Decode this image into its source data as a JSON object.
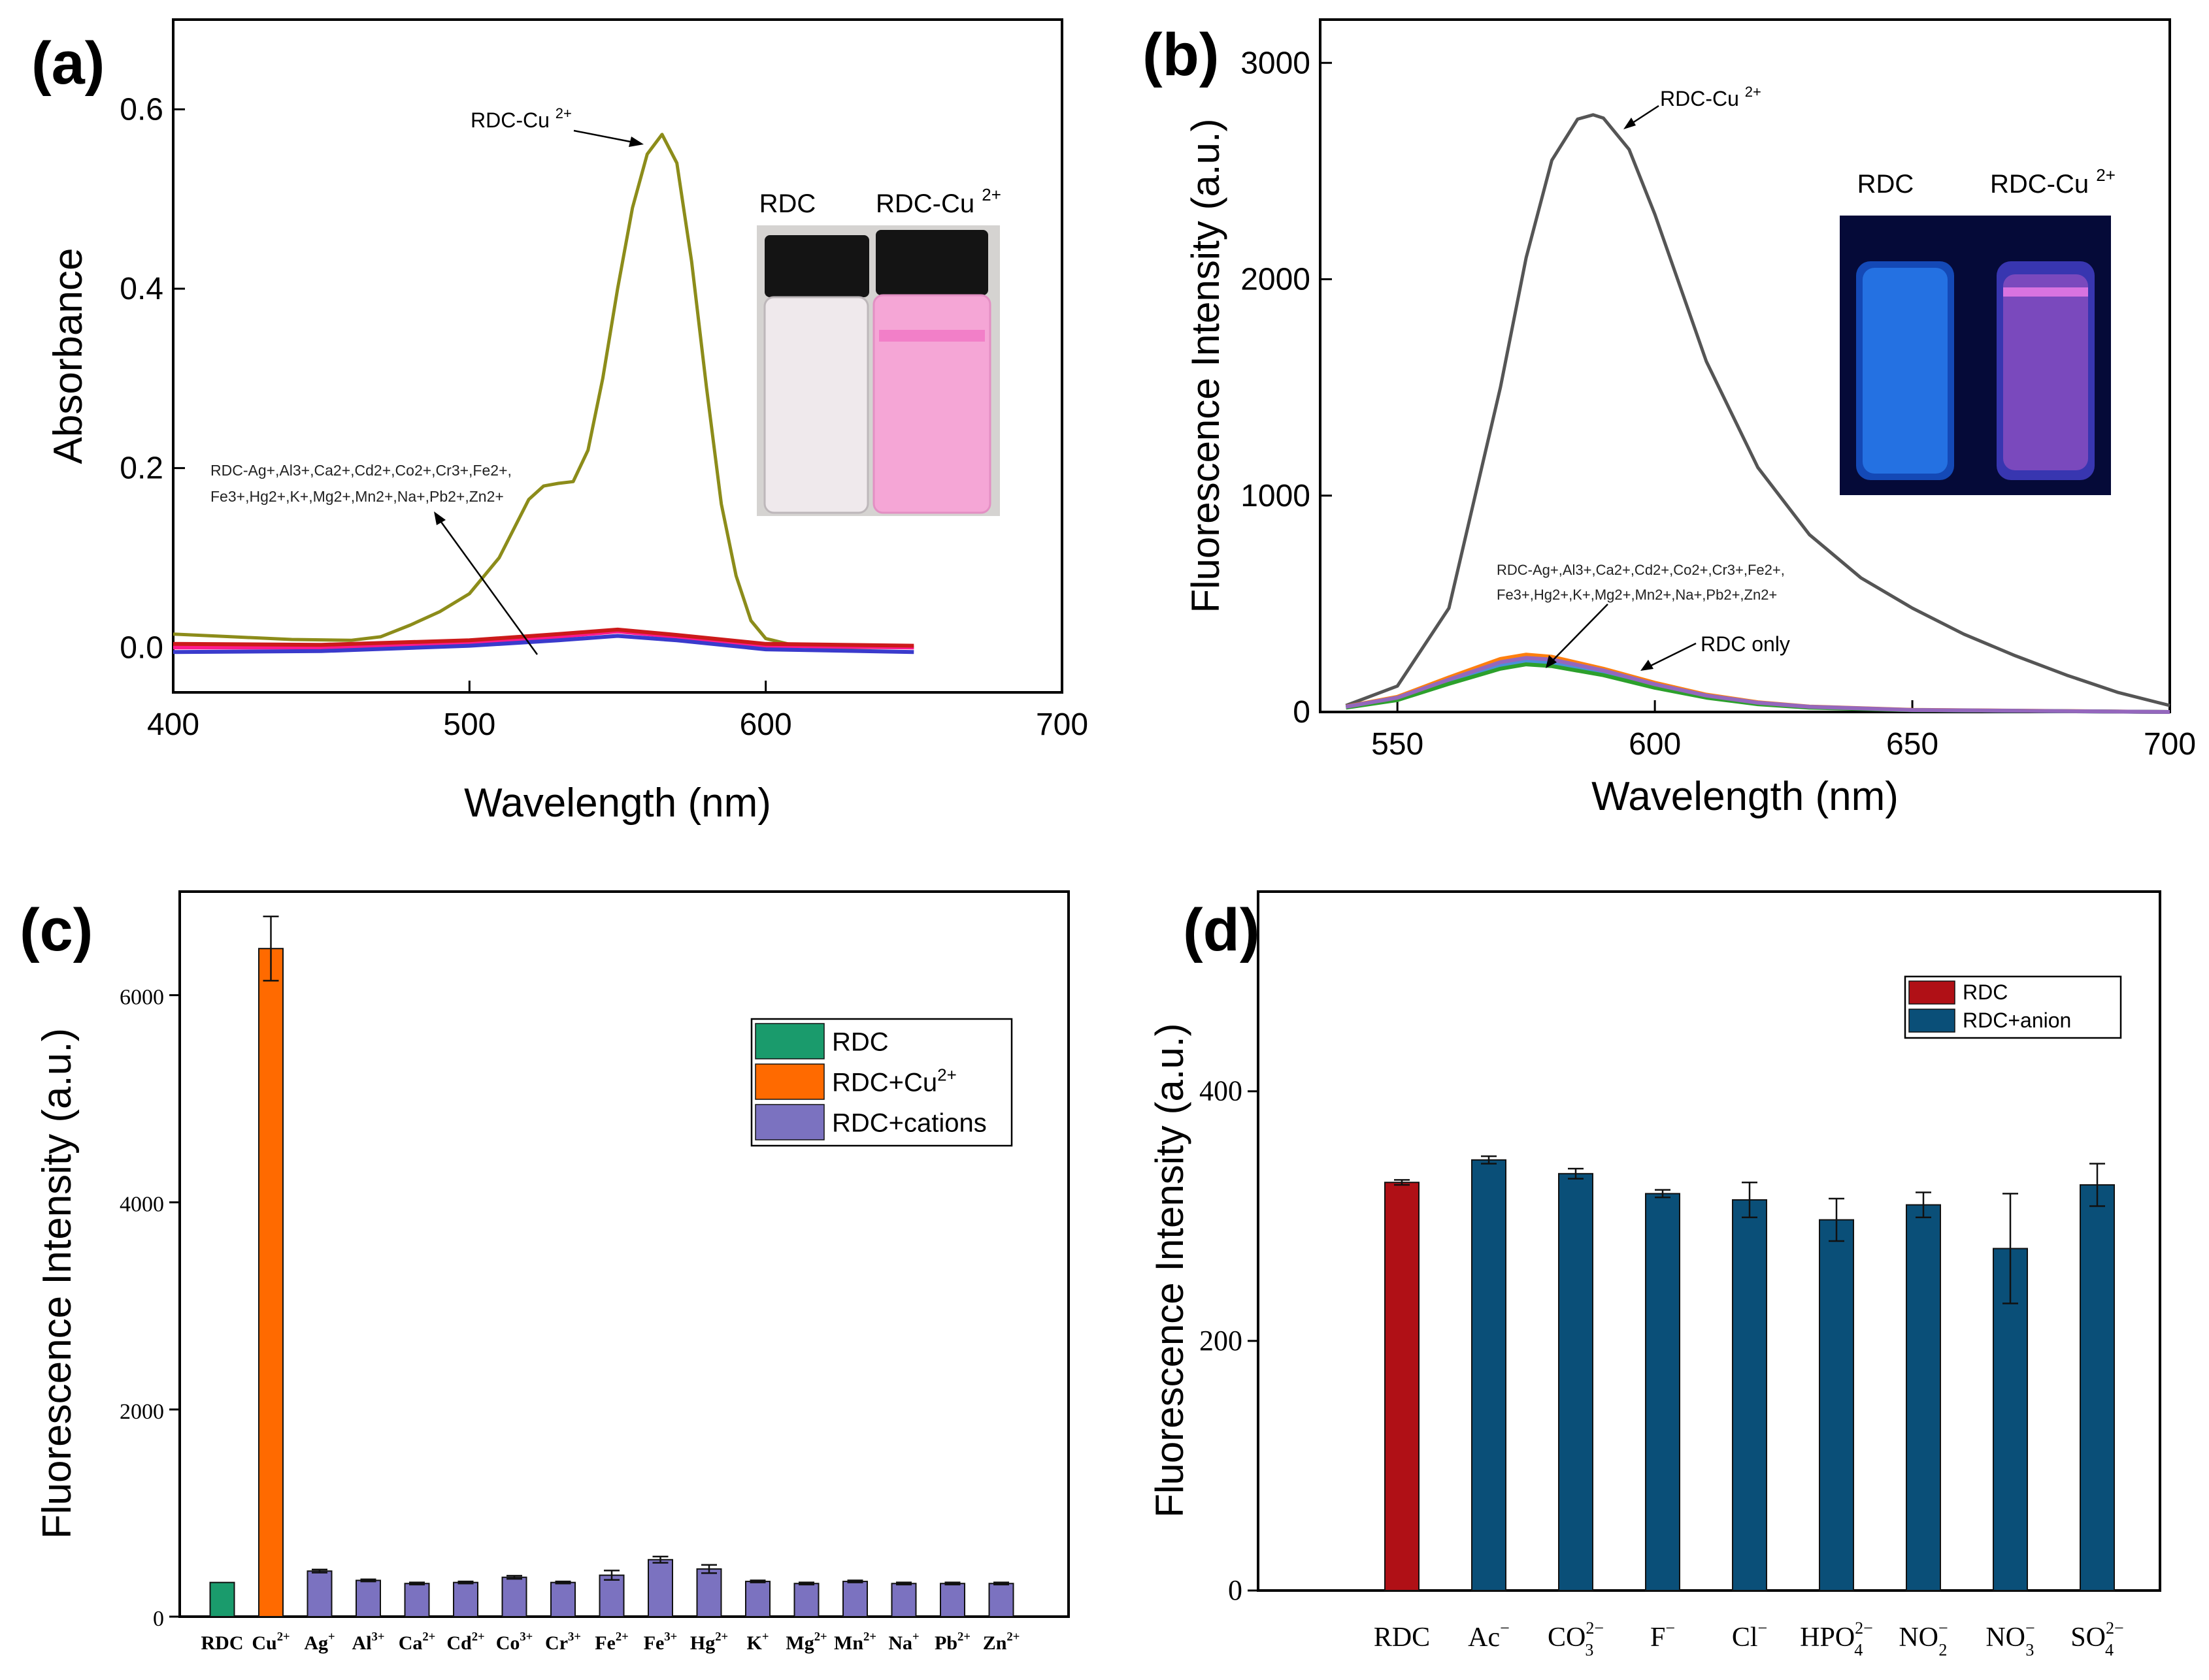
{
  "chart_data": [
    {
      "panel": "(a)",
      "type": "line",
      "xlabel": "Wavelength (nm)",
      "ylabel": "Absorbance",
      "xlim": [
        400,
        700
      ],
      "ylim": [
        -0.05,
        0.7
      ],
      "xticks": [
        "400",
        "500",
        "600",
        "700"
      ],
      "yticks": [
        "0.0",
        "0.2",
        "0.4",
        "0.6"
      ],
      "series": [
        {
          "name": "RDC-Cu2+",
          "color": "#8c8c1a",
          "x": [
            400,
            420,
            440,
            460,
            470,
            480,
            490,
            500,
            510,
            520,
            525,
            530,
            535,
            540,
            545,
            550,
            555,
            560,
            565,
            570,
            575,
            580,
            585,
            590,
            595,
            600,
            610,
            620,
            650
          ],
          "y": [
            0.015,
            0.012,
            0.009,
            0.008,
            0.012,
            0.025,
            0.04,
            0.06,
            0.1,
            0.165,
            0.18,
            0.183,
            0.185,
            0.22,
            0.3,
            0.4,
            0.49,
            0.55,
            0.572,
            0.54,
            0.43,
            0.29,
            0.16,
            0.08,
            0.03,
            0.01,
            0.002,
            0.0,
            0.0
          ]
        },
        {
          "name": "RDC+cations",
          "color": "#ff1a8c",
          "x": [
            400,
            450,
            500,
            530,
            550,
            570,
            600,
            650
          ],
          "y": [
            0.0,
            0.0,
            0.005,
            0.012,
            0.018,
            0.012,
            0.002,
            0.0
          ]
        },
        {
          "name": "RDC+cations",
          "color": "#3a3acc",
          "x": [
            400,
            450,
            500,
            530,
            550,
            570,
            600,
            650
          ],
          "y": [
            -0.005,
            -0.004,
            0.002,
            0.008,
            0.013,
            0.008,
            -0.002,
            -0.005
          ]
        },
        {
          "name": "RDC+cations",
          "color": "#cc1a1a",
          "x": [
            400,
            450,
            500,
            530,
            550,
            570,
            600,
            650
          ],
          "y": [
            0.004,
            0.003,
            0.008,
            0.015,
            0.02,
            0.014,
            0.004,
            0.002
          ]
        }
      ],
      "annotations": [
        {
          "text": "RDC-Cu",
          "sup": "2+"
        },
        {
          "text": "RDC-Ag+,Al3+,Ca2+,Cd2+,Co2+,Cr3+,Fe2+,"
        },
        {
          "text": "Fe3+,Hg2+,K+,Mg2+,Mn2+,Na+,Pb2+,Zn2+"
        }
      ],
      "inset": {
        "left_label": "RDC",
        "right_label": "RDC-Cu",
        "right_sup": "2+"
      }
    },
    {
      "panel": "(b)",
      "type": "line",
      "xlabel": "Wavelength (nm)",
      "ylabel": "Fluorescence Intensity (a.u.)",
      "xlim": [
        535,
        700
      ],
      "ylim": [
        0,
        3200
      ],
      "xticks": [
        "550",
        "600",
        "650",
        "700"
      ],
      "yticks": [
        "0",
        "1000",
        "2000",
        "3000"
      ],
      "series": [
        {
          "name": "RDC-Cu2+",
          "color": "#555555",
          "x": [
            540,
            550,
            560,
            570,
            575,
            580,
            585,
            588,
            590,
            595,
            600,
            610,
            620,
            630,
            640,
            650,
            660,
            670,
            680,
            690,
            700
          ],
          "y": [
            30,
            120,
            480,
            1500,
            2100,
            2550,
            2740,
            2760,
            2745,
            2600,
            2300,
            1620,
            1130,
            820,
            620,
            480,
            360,
            260,
            170,
            90,
            30
          ]
        },
        {
          "name": "RDC+cations",
          "color": "#ff7f0e",
          "x": [
            540,
            550,
            560,
            570,
            575,
            580,
            590,
            600,
            610,
            620,
            630,
            650,
            700
          ],
          "y": [
            25,
            70,
            160,
            245,
            265,
            255,
            200,
            135,
            80,
            45,
            25,
            10,
            0
          ]
        },
        {
          "name": "RDC+cations",
          "color": "#4a90d9",
          "x": [
            540,
            550,
            560,
            570,
            575,
            580,
            590,
            600,
            610,
            620,
            630,
            650,
            700
          ],
          "y": [
            22,
            60,
            140,
            215,
            235,
            228,
            180,
            120,
            72,
            40,
            22,
            8,
            0
          ]
        },
        {
          "name": "RDC only",
          "color": "#2ca02c",
          "x": [
            540,
            550,
            560,
            570,
            575,
            580,
            590,
            600,
            610,
            620,
            630,
            650,
            700
          ],
          "y": [
            20,
            55,
            130,
            200,
            220,
            212,
            170,
            112,
            66,
            36,
            20,
            8,
            0
          ]
        },
        {
          "name": "RDC+cations",
          "color": "#9467bd",
          "x": [
            540,
            550,
            560,
            570,
            575,
            580,
            590,
            600,
            610,
            620,
            630,
            650,
            700
          ],
          "y": [
            24,
            66,
            150,
            230,
            250,
            242,
            192,
            128,
            76,
            43,
            24,
            9,
            0
          ]
        }
      ],
      "annotations": [
        {
          "text": "RDC-Cu",
          "sup": "2+"
        },
        {
          "text": "RDC-Ag+,Al3+,Ca2+,Cd2+,Co2+,Cr3+,Fe2+,"
        },
        {
          "text": "Fe3+,Hg2+,K+,Mg2+,Mn2+,Na+,Pb2+,Zn2+"
        },
        {
          "text": "RDC only"
        }
      ],
      "inset": {
        "left_label": "RDC",
        "right_label": "RDC-Cu",
        "right_sup": "2+"
      }
    },
    {
      "panel": "(c)",
      "type": "bar",
      "ylabel": "Fluorescence Intensity (a.u.)",
      "ylim": [
        0,
        7000
      ],
      "yticks": [
        "0",
        "2000",
        "4000",
        "6000"
      ],
      "categories": [
        {
          "base": "RDC",
          "sup": ""
        },
        {
          "base": "Cu",
          "sup": "2+"
        },
        {
          "base": "Ag",
          "sup": "+"
        },
        {
          "base": "Al",
          "sup": "3+"
        },
        {
          "base": "Ca",
          "sup": "2+"
        },
        {
          "base": "Cd",
          "sup": "2+"
        },
        {
          "base": "Co",
          "sup": "3+"
        },
        {
          "base": "Cr",
          "sup": "3+"
        },
        {
          "base": "Fe",
          "sup": "2+"
        },
        {
          "base": "Fe",
          "sup": "3+"
        },
        {
          "base": "Hg",
          "sup": "2+"
        },
        {
          "base": "K",
          "sup": "+"
        },
        {
          "base": "Mg",
          "sup": "2+"
        },
        {
          "base": "Mn",
          "sup": "2+"
        },
        {
          "base": "Na",
          "sup": "+"
        },
        {
          "base": "Pb",
          "sup": "2+"
        },
        {
          "base": "Zn",
          "sup": "2+"
        }
      ],
      "values": [
        330,
        6450,
        440,
        350,
        320,
        330,
        380,
        330,
        400,
        550,
        460,
        340,
        320,
        340,
        320,
        320,
        320
      ],
      "errors": [
        0,
        310,
        15,
        10,
        10,
        10,
        15,
        10,
        45,
        30,
        40,
        10,
        10,
        10,
        10,
        10,
        10
      ],
      "groups": [
        0,
        1,
        2,
        2,
        2,
        2,
        2,
        2,
        2,
        2,
        2,
        2,
        2,
        2,
        2,
        2,
        2
      ],
      "legend": [
        {
          "label": "RDC",
          "sup": "",
          "color": "#1a9b6c"
        },
        {
          "label": "RDC+Cu",
          "sup": "2+",
          "color": "#ff6a00"
        },
        {
          "label": "RDC+cations",
          "sup": "",
          "color": "#7b72c0"
        }
      ]
    },
    {
      "panel": "(d)",
      "type": "bar",
      "ylabel": "Fluorescence Intensity (a.u.)",
      "ylim": [
        0,
        560
      ],
      "yticks": [
        "0",
        "200",
        "400"
      ],
      "categories": [
        {
          "base": "RDC",
          "sup": "",
          "sub": ""
        },
        {
          "base": "Ac",
          "sup": "−",
          "sub": ""
        },
        {
          "base": "CO",
          "sup": "2−",
          "sub": "3"
        },
        {
          "base": "F",
          "sup": "−",
          "sub": ""
        },
        {
          "base": "Cl",
          "sup": "−",
          "sub": ""
        },
        {
          "base": "HPO",
          "sup": "2−",
          "sub": "4"
        },
        {
          "base": "NO",
          "sup": "−",
          "sub": "2"
        },
        {
          "base": "NO",
          "sup": "−",
          "sub": "3"
        },
        {
          "base": "SO",
          "sup": "2−",
          "sub": "4"
        }
      ],
      "values": [
        327,
        345,
        334,
        318,
        313,
        297,
        309,
        274,
        325
      ],
      "errors": [
        2,
        3,
        4,
        3,
        14,
        17,
        10,
        44,
        17
      ],
      "groups": [
        0,
        1,
        1,
        1,
        1,
        1,
        1,
        1,
        1
      ],
      "legend": [
        {
          "label": "RDC",
          "sup": "",
          "color": "#b01016"
        },
        {
          "label": "RDC+anion",
          "sup": "",
          "color": "#0a4f78"
        }
      ]
    }
  ],
  "panel_labels": [
    "(a)",
    "(b)",
    "(c)",
    "(d)"
  ]
}
